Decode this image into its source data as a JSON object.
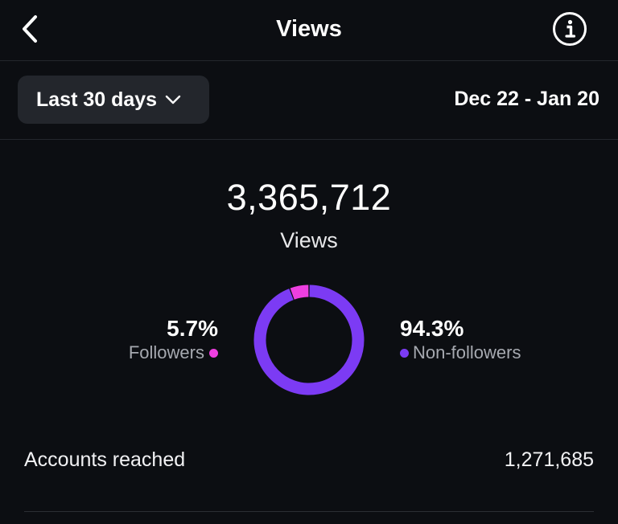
{
  "header": {
    "title": "Views",
    "back_icon": "chevron-left-icon",
    "info_icon": "info-circle-icon"
  },
  "filter": {
    "range_label": "Last 30 days",
    "range_icon": "chevron-down-icon",
    "date_range": "Dec 22 - Jan 20"
  },
  "summary": {
    "total_value": "3,365,712",
    "total_label": "Views"
  },
  "chart_data": {
    "type": "pie",
    "variant": "donut",
    "categories": [
      "Followers",
      "Non-followers"
    ],
    "values": [
      5.7,
      94.3
    ],
    "value_labels": [
      "5.7%",
      "94.3%"
    ],
    "colors": [
      "#ee3fe0",
      "#7c3bf4"
    ]
  },
  "legend": {
    "followers": {
      "pct": "5.7%",
      "label": "Followers",
      "color": "#ee3fe0"
    },
    "non_followers": {
      "pct": "94.3%",
      "label": "Non-followers",
      "color": "#7c3bf4"
    }
  },
  "metrics": {
    "accounts_reached": {
      "label": "Accounts reached",
      "value": "1,271,685"
    }
  },
  "colors": {
    "background": "#0c0e12",
    "button_bg": "#23262c",
    "divider": "#24272d"
  }
}
